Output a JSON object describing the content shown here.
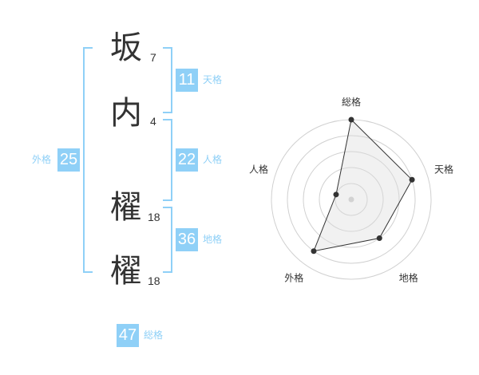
{
  "name": [
    {
      "char": "坂",
      "strokes": "7"
    },
    {
      "char": "内",
      "strokes": "4"
    },
    {
      "char": "櫂",
      "strokes": "18"
    },
    {
      "char": "櫂",
      "strokes": "18"
    }
  ],
  "fortunes": {
    "tenkaku": {
      "label": "天格",
      "value": "11"
    },
    "jinkaku": {
      "label": "人格",
      "value": "22"
    },
    "chikaku": {
      "label": "地格",
      "value": "36"
    },
    "gaikaku": {
      "label": "外格",
      "value": "25"
    },
    "soukaku": {
      "label": "総格",
      "value": "47"
    }
  },
  "colors": {
    "accent": "#8fd0f7",
    "text": "#333333",
    "radar_fill": "#f0f0f0"
  },
  "chart_data": {
    "type": "radar",
    "axes": [
      "総格",
      "天格",
      "地格",
      "外格",
      "人格"
    ],
    "values": [
      5,
      4,
      3,
      4,
      1
    ],
    "rmax": 5,
    "rings": 5
  }
}
